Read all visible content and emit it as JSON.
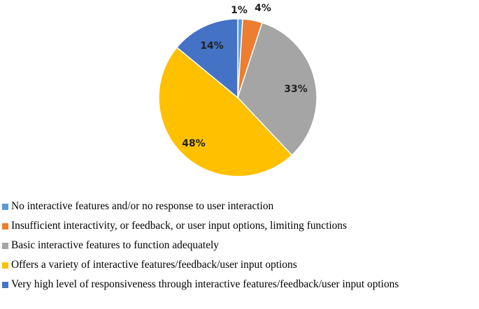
{
  "chart_data": {
    "type": "pie",
    "title": "",
    "legend_position": "bottom-left",
    "slices": [
      {
        "label": "No interactive features and/or no response to user interaction",
        "value": 1,
        "display": "1%",
        "color": "#5B9BD5"
      },
      {
        "label": "Insufficient interactivity, or feedback, or user input options, limiting functions",
        "value": 4,
        "display": "4%",
        "color": "#ED7D31"
      },
      {
        "label": "Basic interactive features to function adequately",
        "value": 33,
        "display": "33%",
        "color": "#A5A5A5"
      },
      {
        "label": "Offers a variety of interactive features/feedback/user input options",
        "value": 48,
        "display": "48%",
        "color": "#FFC000"
      },
      {
        "label": "Very high level of responsiveness through interactive features/feedback/user input options",
        "value": 14,
        "display": "14%",
        "color": "#4472C4"
      }
    ]
  }
}
